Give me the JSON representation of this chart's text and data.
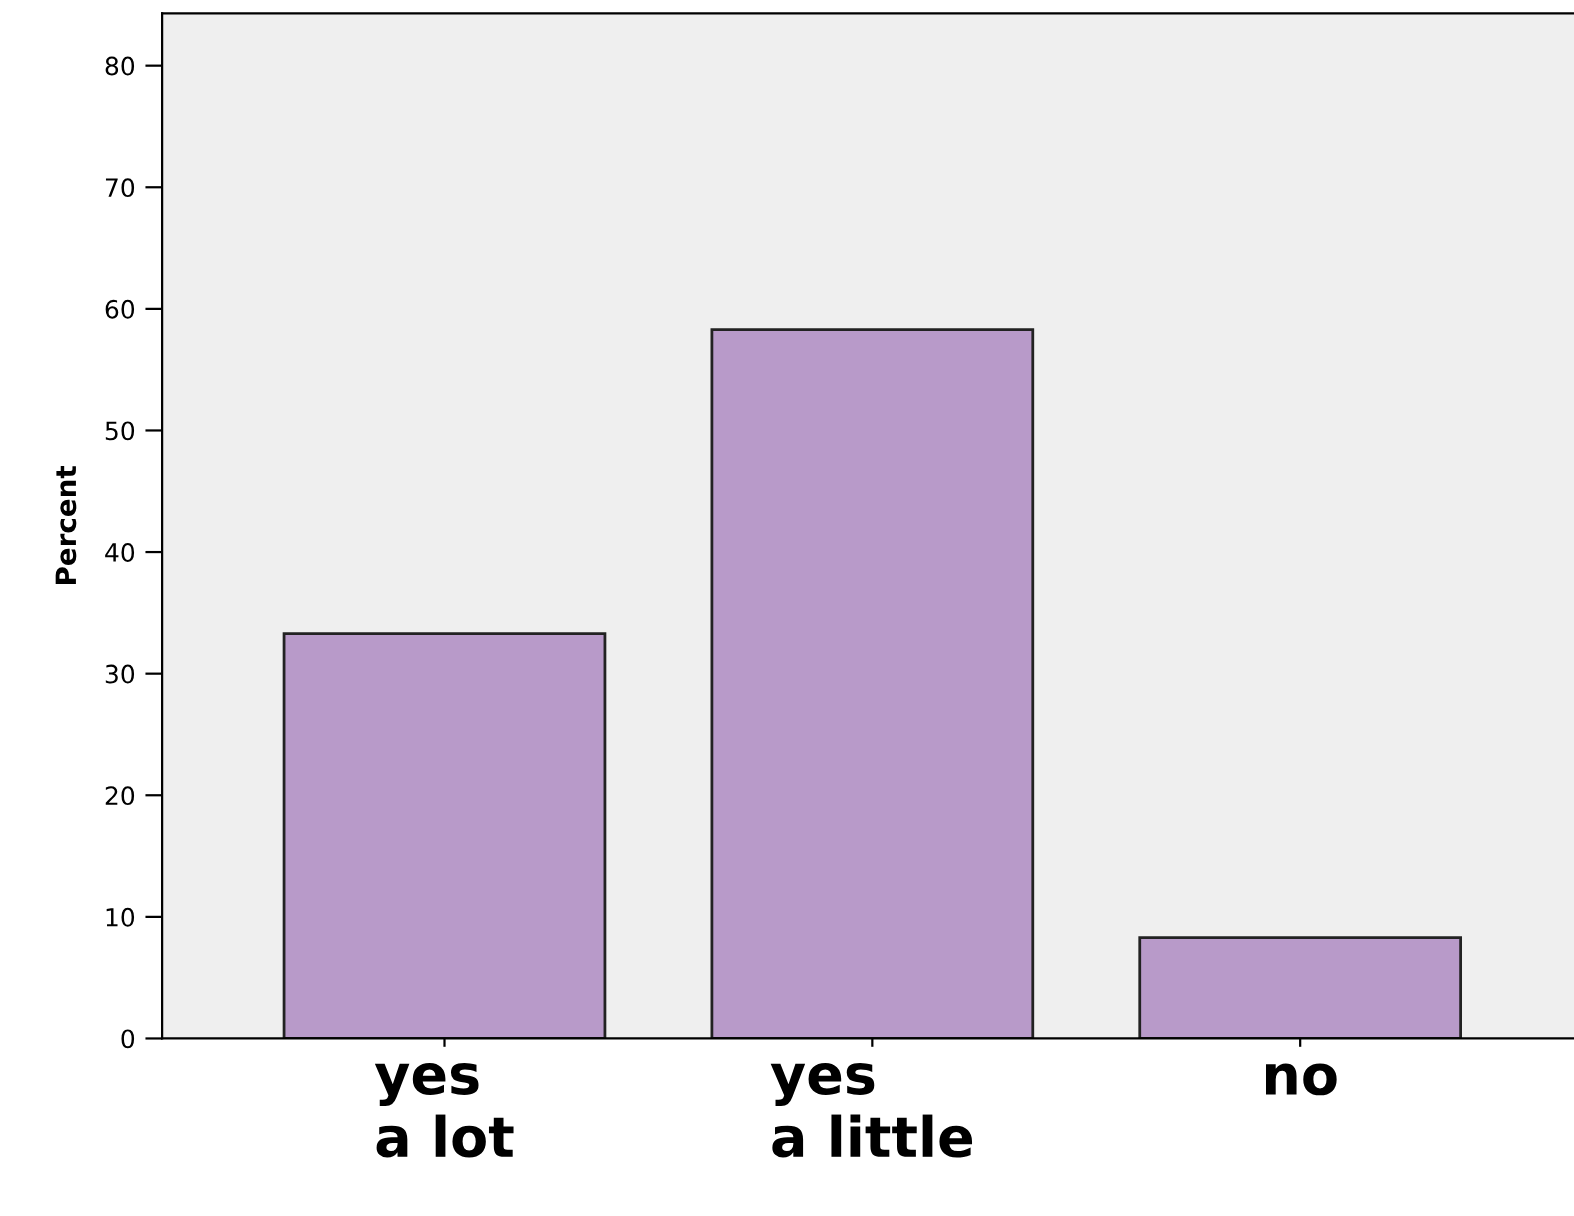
{
  "chart_data": {
    "type": "bar",
    "ylabel": "Percent",
    "categories": [
      "yes\na lot",
      "yes\na little",
      "no"
    ],
    "values": [
      33.3,
      58.3,
      8.3
    ],
    "color": "#b89ac9",
    "ylim": [
      0,
      84.3
    ],
    "yticks": [
      0,
      10,
      20,
      30,
      40,
      50,
      60,
      70,
      80
    ],
    "grid": false
  }
}
